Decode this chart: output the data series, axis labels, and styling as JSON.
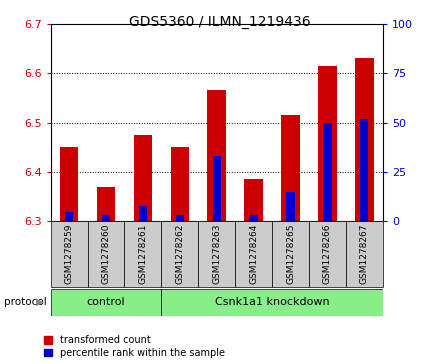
{
  "title": "GDS5360 / ILMN_1219436",
  "samples": [
    "GSM1278259",
    "GSM1278260",
    "GSM1278261",
    "GSM1278262",
    "GSM1278263",
    "GSM1278264",
    "GSM1278265",
    "GSM1278266",
    "GSM1278267"
  ],
  "transformed_counts": [
    6.45,
    6.37,
    6.475,
    6.45,
    6.565,
    6.385,
    6.515,
    6.615,
    6.63
  ],
  "percentile_ranks": [
    5,
    3,
    8,
    3,
    33,
    3,
    15,
    50,
    52
  ],
  "y_min": 6.3,
  "y_max": 6.7,
  "y_ticks": [
    6.3,
    6.4,
    6.5,
    6.6,
    6.7
  ],
  "right_y_ticks": [
    0,
    25,
    50,
    75,
    100
  ],
  "bar_color": "#cc0000",
  "percentile_color": "#0000cc",
  "n_control": 3,
  "n_knockdown": 6,
  "control_label": "control",
  "knockdown_label": "Csnk1a1 knockdown",
  "group_bg_color": "#88ee88",
  "sample_bg_color": "#cccccc",
  "protocol_label": "protocol",
  "legend_transformed": "transformed count",
  "legend_percentile": "percentile rank within the sample",
  "left_axis_color": "#cc0000",
  "right_axis_color": "#0000cc",
  "bar_width": 0.5
}
